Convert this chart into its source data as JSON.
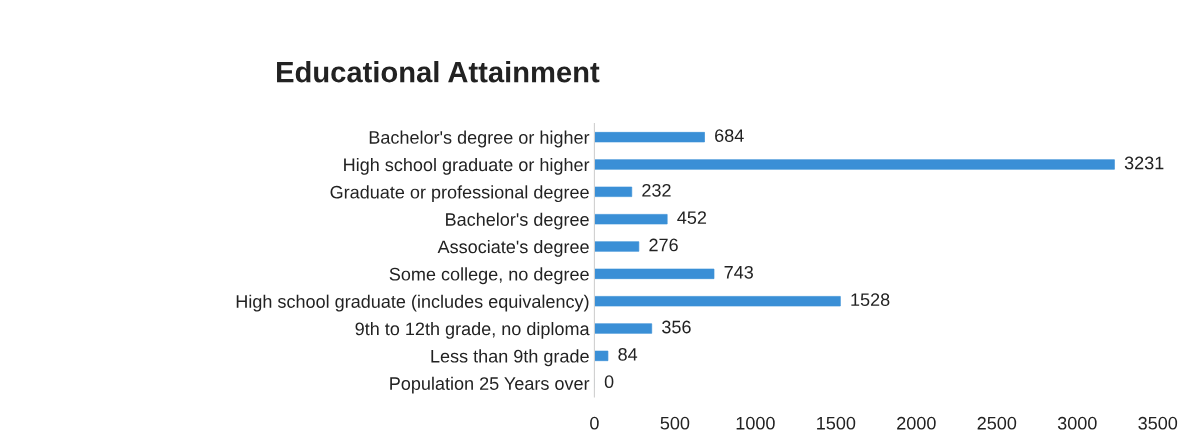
{
  "chart_data": {
    "type": "bar",
    "orientation": "horizontal",
    "title": "Educational Attainment",
    "categories": [
      "Bachelor's degree or higher",
      "High school graduate or higher",
      "Graduate or professional degree",
      "Bachelor's degree",
      "Associate's degree",
      "Some college, no degree",
      "High school graduate (includes equivalency)",
      "9th to 12th grade, no diploma",
      "Less than 9th grade",
      "Population 25 Years over"
    ],
    "values": [
      684,
      3231,
      232,
      452,
      276,
      743,
      1528,
      356,
      84,
      0
    ],
    "color": "#3a8fd6",
    "xlim": [
      0,
      3500
    ],
    "xticks": [
      0,
      500,
      1000,
      1500,
      2000,
      2500,
      3000,
      3500
    ],
    "data_labels": true,
    "grid": false,
    "legend": false
  }
}
